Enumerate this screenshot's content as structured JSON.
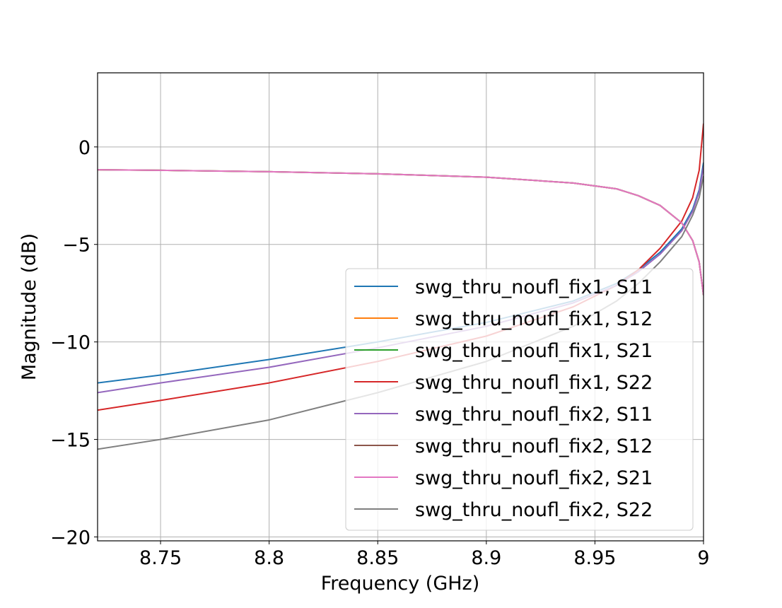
{
  "chart_data": {
    "type": "line",
    "title": "",
    "xlabel": "Frequency (GHz)",
    "ylabel": "Magnitude (dB)",
    "xlim": [
      8.721,
      9.0
    ],
    "ylim": [
      -20.2,
      3.8
    ],
    "xticks": [
      8.75,
      8.8,
      8.85,
      8.9,
      8.95,
      9.0
    ],
    "xtick_labels": [
      "8.75",
      "8.8",
      "8.85",
      "8.9",
      "8.95",
      "9"
    ],
    "yticks": [
      0,
      -5,
      -10,
      -15,
      -20
    ],
    "ytick_labels": [
      "0",
      "−5",
      "−10",
      "−15",
      "−20"
    ],
    "grid": true,
    "legend_position": "lower-right",
    "x": [
      8.721,
      8.75,
      8.8,
      8.85,
      8.9,
      8.94,
      8.96,
      8.97,
      8.98,
      8.99,
      8.995,
      8.998,
      9.0
    ],
    "series": [
      {
        "name": "swg_thru_noufl_fix1, S11",
        "color": "#1f77b4",
        "values": [
          -12.1,
          -11.7,
          -10.9,
          -10.0,
          -9.0,
          -7.9,
          -7.0,
          -6.3,
          -5.4,
          -4.2,
          -3.2,
          -2.2,
          -0.8
        ]
      },
      {
        "name": "swg_thru_noufl_fix1, S12",
        "color": "#ff7f0e",
        "values": [
          -1.17,
          -1.2,
          -1.27,
          -1.38,
          -1.55,
          -1.85,
          -2.15,
          -2.5,
          -3.0,
          -3.9,
          -4.8,
          -5.9,
          -7.6
        ]
      },
      {
        "name": "swg_thru_noufl_fix1, S21",
        "color": "#2ca02c",
        "values": [
          -1.17,
          -1.2,
          -1.27,
          -1.38,
          -1.55,
          -1.85,
          -2.15,
          -2.5,
          -3.0,
          -3.9,
          -4.8,
          -5.9,
          -7.6
        ]
      },
      {
        "name": "swg_thru_noufl_fix1, S22",
        "color": "#d62728",
        "values": [
          -13.5,
          -13.0,
          -12.1,
          -11.0,
          -9.7,
          -8.2,
          -7.1,
          -6.3,
          -5.2,
          -3.8,
          -2.6,
          -1.2,
          1.2
        ]
      },
      {
        "name": "swg_thru_noufl_fix2, S11",
        "color": "#9467bd",
        "values": [
          -12.6,
          -12.1,
          -11.3,
          -10.3,
          -9.2,
          -8.0,
          -7.1,
          -6.4,
          -5.5,
          -4.3,
          -3.3,
          -2.3,
          -1.0
        ]
      },
      {
        "name": "swg_thru_noufl_fix2, S12",
        "color": "#8c564b",
        "values": [
          -1.17,
          -1.2,
          -1.27,
          -1.38,
          -1.55,
          -1.85,
          -2.15,
          -2.5,
          -3.0,
          -3.9,
          -4.8,
          -5.9,
          -7.6
        ]
      },
      {
        "name": "swg_thru_noufl_fix2, S21",
        "color": "#e377c2",
        "values": [
          -1.17,
          -1.2,
          -1.27,
          -1.38,
          -1.55,
          -1.85,
          -2.15,
          -2.5,
          -3.0,
          -3.9,
          -4.8,
          -5.9,
          -7.6
        ]
      },
      {
        "name": "swg_thru_noufl_fix2, S22",
        "color": "#7f7f7f",
        "values": [
          -15.5,
          -15.0,
          -14.0,
          -12.6,
          -11.0,
          -9.2,
          -7.9,
          -7.0,
          -5.9,
          -4.6,
          -3.5,
          -2.6,
          -1.5
        ]
      }
    ]
  }
}
